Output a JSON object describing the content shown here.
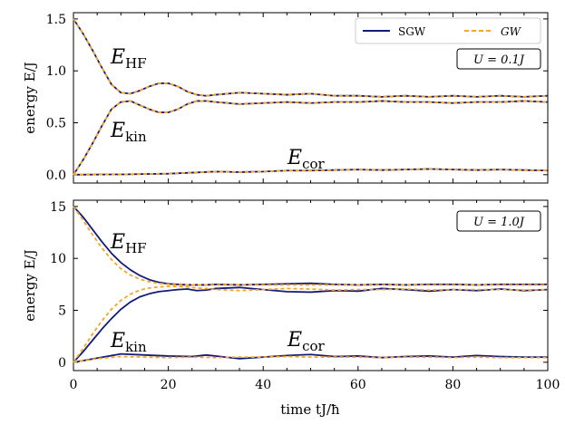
{
  "chart_data": [
    {
      "type": "line",
      "title": "",
      "xlabel": "",
      "ylabel": "energy E/J",
      "xlim": [
        0,
        100
      ],
      "ylim": [
        -0.08,
        1.56
      ],
      "xticks": [
        0,
        20,
        40,
        60,
        80,
        100
      ],
      "yticks": [
        0.0,
        0.5,
        1.0,
        1.5
      ],
      "ytick_labels": [
        "0.0",
        "0.5",
        "1.0",
        "1.5"
      ],
      "parameter_box": "U = 0.1J",
      "legend": {
        "position": "top-right",
        "entries": [
          "SGW",
          "GW"
        ]
      },
      "series": [
        {
          "name": "SGW",
          "color": "#141a7a",
          "curves": {
            "E_HF": {
              "x": [
                0,
                2,
                4,
                6,
                8,
                10,
                12,
                14,
                16,
                18,
                20,
                22,
                24,
                26,
                28,
                30,
                35,
                40,
                45,
                50,
                55,
                60,
                65,
                70,
                75,
                80,
                85,
                90,
                95,
                100
              ],
              "y": [
                1.5,
                1.36,
                1.2,
                1.03,
                0.87,
                0.79,
                0.78,
                0.81,
                0.85,
                0.88,
                0.88,
                0.85,
                0.8,
                0.77,
                0.76,
                0.77,
                0.79,
                0.78,
                0.77,
                0.78,
                0.76,
                0.76,
                0.75,
                0.76,
                0.75,
                0.76,
                0.75,
                0.76,
                0.75,
                0.76
              ]
            },
            "E_kin": {
              "x": [
                0,
                2,
                4,
                6,
                8,
                10,
                12,
                14,
                16,
                18,
                20,
                22,
                24,
                26,
                28,
                30,
                35,
                40,
                45,
                50,
                55,
                60,
                65,
                70,
                75,
                80,
                85,
                90,
                95,
                100
              ],
              "y": [
                0.0,
                0.14,
                0.3,
                0.47,
                0.63,
                0.7,
                0.71,
                0.67,
                0.63,
                0.6,
                0.6,
                0.63,
                0.68,
                0.71,
                0.71,
                0.7,
                0.68,
                0.69,
                0.7,
                0.69,
                0.7,
                0.7,
                0.71,
                0.7,
                0.7,
                0.69,
                0.7,
                0.7,
                0.71,
                0.7
              ]
            },
            "E_cor": {
              "x": [
                0,
                10,
                20,
                25,
                30,
                35,
                40,
                45,
                50,
                55,
                60,
                65,
                70,
                75,
                80,
                85,
                90,
                95,
                100
              ],
              "y": [
                0.0,
                0.003,
                0.01,
                0.02,
                0.03,
                0.025,
                0.03,
                0.04,
                0.04,
                0.045,
                0.05,
                0.045,
                0.05,
                0.055,
                0.05,
                0.045,
                0.05,
                0.045,
                0.04
              ]
            }
          }
        },
        {
          "name": "GW",
          "color": "#f5a623",
          "style": "dashed",
          "curves": {
            "E_HF": {
              "x": [
                0,
                2,
                4,
                6,
                8,
                10,
                12,
                14,
                16,
                18,
                20,
                22,
                24,
                26,
                28,
                30,
                35,
                40,
                45,
                50,
                55,
                60,
                65,
                70,
                75,
                80,
                85,
                90,
                95,
                100
              ],
              "y": [
                1.5,
                1.36,
                1.2,
                1.03,
                0.87,
                0.79,
                0.78,
                0.81,
                0.85,
                0.88,
                0.88,
                0.85,
                0.8,
                0.77,
                0.76,
                0.77,
                0.79,
                0.78,
                0.77,
                0.78,
                0.76,
                0.76,
                0.75,
                0.76,
                0.75,
                0.76,
                0.75,
                0.76,
                0.75,
                0.76
              ]
            },
            "E_kin": {
              "x": [
                0,
                2,
                4,
                6,
                8,
                10,
                12,
                14,
                16,
                18,
                20,
                22,
                24,
                26,
                28,
                30,
                35,
                40,
                45,
                50,
                55,
                60,
                65,
                70,
                75,
                80,
                85,
                90,
                95,
                100
              ],
              "y": [
                0.0,
                0.14,
                0.3,
                0.47,
                0.63,
                0.7,
                0.71,
                0.67,
                0.63,
                0.6,
                0.6,
                0.63,
                0.68,
                0.71,
                0.71,
                0.7,
                0.68,
                0.69,
                0.7,
                0.69,
                0.7,
                0.7,
                0.71,
                0.7,
                0.7,
                0.69,
                0.7,
                0.7,
                0.71,
                0.7
              ]
            },
            "E_cor": {
              "x": [
                0,
                10,
                20,
                25,
                30,
                35,
                40,
                45,
                50,
                55,
                60,
                65,
                70,
                75,
                80,
                85,
                90,
                95,
                100
              ],
              "y": [
                0.0,
                0.003,
                0.01,
                0.02,
                0.03,
                0.025,
                0.03,
                0.04,
                0.04,
                0.045,
                0.05,
                0.045,
                0.05,
                0.055,
                0.05,
                0.045,
                0.05,
                0.045,
                0.04
              ]
            }
          }
        }
      ]
    },
    {
      "type": "line",
      "title": "",
      "xlabel": "time tJ/ħ",
      "ylabel": "energy E/J",
      "xlim": [
        0,
        100
      ],
      "ylim": [
        -0.8,
        15.6
      ],
      "xticks": [
        0,
        20,
        40,
        60,
        80,
        100
      ],
      "xtick_labels": [
        "0",
        "20",
        "40",
        "60",
        "80",
        "100"
      ],
      "yticks": [
        0,
        5,
        10,
        15
      ],
      "ytick_labels": [
        "0",
        "5",
        "10",
        "15"
      ],
      "parameter_box": "U = 1.0J",
      "series": [
        {
          "name": "SGW",
          "color": "#141a7a",
          "curves": {
            "E_HF": {
              "x": [
                0,
                2,
                4,
                6,
                8,
                10,
                12,
                14,
                16,
                18,
                20,
                22,
                24,
                26,
                28,
                30,
                35,
                40,
                45,
                50,
                55,
                60,
                65,
                70,
                75,
                80,
                85,
                90,
                95,
                100
              ],
              "y": [
                15.0,
                14.0,
                12.8,
                11.6,
                10.5,
                9.6,
                8.9,
                8.35,
                7.95,
                7.7,
                7.55,
                7.5,
                7.45,
                7.45,
                7.45,
                7.5,
                7.45,
                7.5,
                7.55,
                7.6,
                7.5,
                7.45,
                7.5,
                7.45,
                7.5,
                7.5,
                7.45,
                7.5,
                7.5,
                7.5
              ]
            },
            "E_kin": {
              "x": [
                0,
                2,
                4,
                6,
                8,
                10,
                12,
                14,
                16,
                18,
                20,
                22,
                24,
                26,
                28,
                30,
                35,
                40,
                45,
                50,
                55,
                60,
                65,
                70,
                75,
                80,
                85,
                90,
                95,
                100
              ],
              "y": [
                0.0,
                1.0,
                2.1,
                3.2,
                4.2,
                5.1,
                5.8,
                6.3,
                6.6,
                6.8,
                6.9,
                7.0,
                7.05,
                6.9,
                6.95,
                7.1,
                7.2,
                7.0,
                6.8,
                6.75,
                6.9,
                6.85,
                7.1,
                7.0,
                6.85,
                7.0,
                6.9,
                7.05,
                6.9,
                7.0
              ]
            },
            "E_cor": {
              "x": [
                0,
                5,
                10,
                15,
                20,
                25,
                28,
                32,
                35,
                40,
                45,
                50,
                55,
                60,
                65,
                70,
                75,
                80,
                85,
                90,
                95,
                100
              ],
              "y": [
                0.0,
                0.4,
                0.8,
                0.7,
                0.6,
                0.55,
                0.7,
                0.5,
                0.35,
                0.5,
                0.65,
                0.75,
                0.55,
                0.6,
                0.45,
                0.55,
                0.6,
                0.5,
                0.65,
                0.55,
                0.5,
                0.5
              ]
            }
          }
        },
        {
          "name": "GW",
          "color": "#f5a623",
          "style": "dashed",
          "curves": {
            "E_HF": {
              "x": [
                0,
                2,
                4,
                6,
                8,
                10,
                12,
                14,
                16,
                18,
                20,
                22,
                24,
                26,
                28,
                30,
                35,
                40,
                45,
                50,
                55,
                60,
                65,
                70,
                75,
                80,
                85,
                90,
                95,
                100
              ],
              "y": [
                15.0,
                13.7,
                12.3,
                11.0,
                9.9,
                9.0,
                8.4,
                8.0,
                7.75,
                7.6,
                7.5,
                7.45,
                7.45,
                7.45,
                7.45,
                7.45,
                7.45,
                7.45,
                7.45,
                7.45,
                7.45,
                7.45,
                7.45,
                7.45,
                7.45,
                7.45,
                7.45,
                7.45,
                7.45,
                7.45
              ]
            },
            "E_kin": {
              "x": [
                0,
                2,
                4,
                6,
                8,
                10,
                12,
                14,
                16,
                18,
                20,
                22,
                24,
                26,
                28,
                30,
                35,
                40,
                45,
                50,
                55,
                60,
                65,
                70,
                75,
                80,
                85,
                90,
                95,
                100
              ],
              "y": [
                0.0,
                1.3,
                2.7,
                4.0,
                5.1,
                5.95,
                6.55,
                6.95,
                7.15,
                7.25,
                7.3,
                7.3,
                7.25,
                7.15,
                7.1,
                7.0,
                6.9,
                7.0,
                7.1,
                7.05,
                6.95,
                7.0,
                7.0,
                7.05,
                6.95,
                7.0,
                7.0,
                7.0,
                6.95,
                7.0
              ]
            },
            "E_cor": {
              "x": [
                0,
                5,
                10,
                15,
                20,
                25,
                30,
                35,
                40,
                45,
                50,
                55,
                60,
                65,
                70,
                75,
                80,
                85,
                90,
                95,
                100
              ],
              "y": [
                0.0,
                0.35,
                0.55,
                0.5,
                0.45,
                0.5,
                0.45,
                0.5,
                0.5,
                0.55,
                0.5,
                0.5,
                0.5,
                0.45,
                0.5,
                0.5,
                0.45,
                0.5,
                0.45,
                0.45,
                0.45
              ]
            }
          }
        }
      ]
    }
  ],
  "labels": {
    "E_HF": {
      "main": "E",
      "sub": "HF"
    },
    "E_kin": {
      "main": "E",
      "sub": "kin"
    },
    "E_cor": {
      "main": "E",
      "sub": "cor"
    }
  }
}
